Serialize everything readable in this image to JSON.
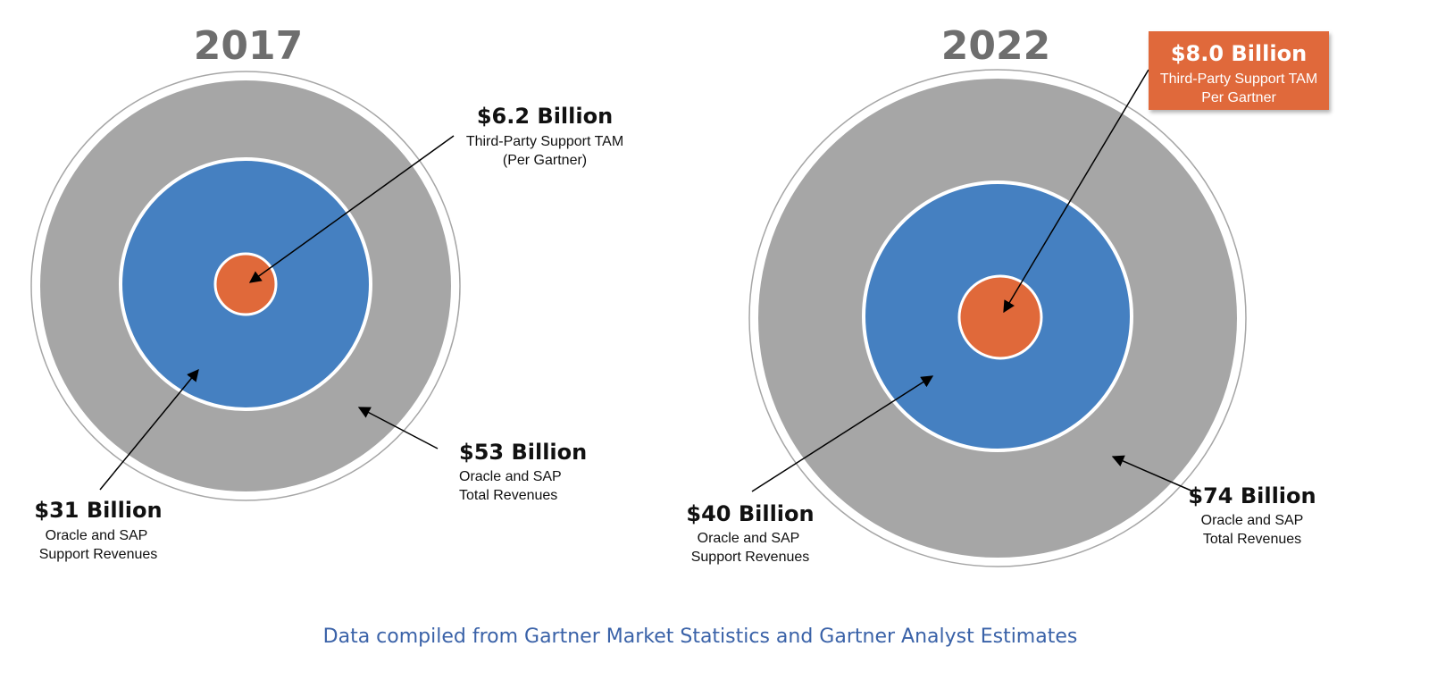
{
  "colors": {
    "outer_ring": "#a6a6a6",
    "middle_circle": "#4580c1",
    "inner_circle": "#e0693a",
    "callout_bg": "#e0693a",
    "year_text": "#6e6e6e",
    "source_text": "#3a62a8",
    "arrow": "#000000"
  },
  "panels": [
    {
      "year": "2017",
      "inner": {
        "amount": "$6.2 Billion",
        "line1": "Third-Party Support TAM",
        "line2": "(Per Gartner)",
        "value_billion": 6.2
      },
      "middle": {
        "amount": "$31 Billion",
        "line1": "Oracle and SAP",
        "line2": "Support Revenues",
        "value_billion": 31
      },
      "outer": {
        "amount": "$53 Billion",
        "line1": "Oracle and SAP",
        "line2": "Total Revenues",
        "value_billion": 53
      }
    },
    {
      "year": "2022",
      "inner": {
        "amount": "$8.0 Billion",
        "line1": "Third-Party Support TAM",
        "line2": "Per Gartner",
        "value_billion": 8.0
      },
      "middle": {
        "amount": "$40 Billion",
        "line1": "Oracle and SAP",
        "line2": "Support Revenues",
        "value_billion": 40
      },
      "outer": {
        "amount": "$74 Billion",
        "line1": "Oracle and SAP",
        "line2": "Total Revenues",
        "value_billion": 74
      }
    }
  ],
  "source_note": "Data compiled from Gartner Market Statistics and Gartner Analyst Estimates"
}
